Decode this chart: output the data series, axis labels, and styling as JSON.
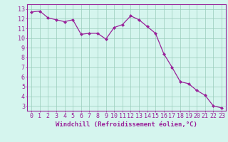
{
  "x": [
    0,
    1,
    2,
    3,
    4,
    5,
    6,
    7,
    8,
    9,
    10,
    11,
    12,
    13,
    14,
    15,
    16,
    17,
    18,
    19,
    20,
    21,
    22,
    23
  ],
  "y": [
    12.7,
    12.8,
    12.1,
    11.9,
    11.7,
    11.9,
    10.4,
    10.5,
    10.5,
    9.9,
    11.1,
    11.4,
    12.3,
    11.9,
    11.2,
    10.5,
    8.4,
    7.0,
    5.5,
    5.3,
    4.6,
    4.1,
    3.0,
    2.8
  ],
  "line_color": "#992299",
  "marker": "D",
  "marker_size": 2.0,
  "linewidth": 0.9,
  "bg_color": "#d5f5ee",
  "grid_color": "#99ccbb",
  "tick_color": "#992299",
  "label_color": "#992299",
  "xlabel": "Windchill (Refroidissement éolien,°C)",
  "xlabel_fontsize": 6.5,
  "xtick_labels": [
    "0",
    "1",
    "2",
    "3",
    "4",
    "5",
    "6",
    "7",
    "8",
    "9",
    "10",
    "11",
    "12",
    "13",
    "14",
    "15",
    "16",
    "17",
    "18",
    "19",
    "20",
    "21",
    "22",
    "23"
  ],
  "ytick_labels": [
    "3",
    "4",
    "5",
    "6",
    "7",
    "8",
    "9",
    "10",
    "11",
    "12",
    "13"
  ],
  "yticks": [
    3,
    4,
    5,
    6,
    7,
    8,
    9,
    10,
    11,
    12,
    13
  ],
  "ylim": [
    2.5,
    13.5
  ],
  "xlim": [
    -0.5,
    23.5
  ],
  "tick_fontsize": 6.0,
  "spine_color": "#992299"
}
